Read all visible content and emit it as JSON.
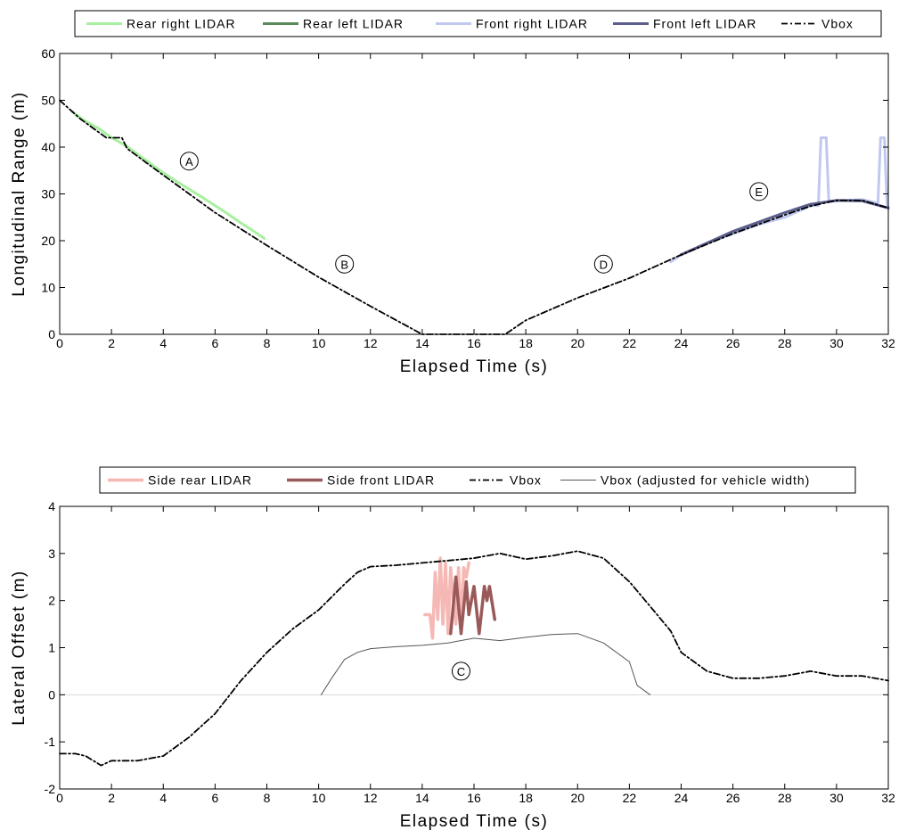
{
  "chart_data": [
    {
      "type": "line",
      "xlabel": "Elapsed Time (s)",
      "ylabel": "Longitudinal Range (m)",
      "xlim": [
        0,
        32
      ],
      "ylim": [
        0,
        60
      ],
      "xticks": [
        "0",
        "2",
        "4",
        "6",
        "8",
        "10",
        "12",
        "14",
        "16",
        "18",
        "20",
        "22",
        "24",
        "26",
        "28",
        "30",
        "32"
      ],
      "yticks": [
        "0",
        "10",
        "20",
        "30",
        "40",
        "50",
        "60"
      ],
      "legend_position": "top",
      "series": [
        {
          "name": "Rear right LIDAR",
          "color": "#a8f0a0",
          "style": "solid",
          "width": 3,
          "x": [
            0.5,
            1,
            1.5,
            2,
            2.5,
            3,
            3.5,
            4,
            4.5,
            5,
            5.5,
            6,
            6.5,
            7,
            7.5,
            7.9
          ],
          "y": [
            47.5,
            45.5,
            44,
            42,
            40.5,
            38.5,
            36.5,
            34.5,
            32.7,
            31,
            29.3,
            27.5,
            25.7,
            23.8,
            22,
            20.5
          ]
        },
        {
          "name": "Rear left LIDAR",
          "color": "#5a8a5a",
          "style": "solid",
          "width": 3,
          "x": [],
          "y": []
        },
        {
          "name": "Front right LIDAR",
          "color": "#c0c8f0",
          "style": "solid",
          "width": 3,
          "x": [
            23.6,
            24,
            25,
            26,
            27,
            28,
            29,
            29.3,
            29.4,
            29.6,
            29.7,
            30,
            31,
            31.6,
            31.7,
            31.85,
            31.95,
            32
          ],
          "y": [
            15.5,
            17,
            19.5,
            21.5,
            23.5,
            25,
            27.5,
            27.5,
            42,
            42,
            28.5,
            28.5,
            28.8,
            28,
            42,
            42,
            28,
            27
          ]
        },
        {
          "name": "Front left LIDAR",
          "color": "#5c5e8c",
          "style": "solid",
          "width": 3,
          "x": [
            24,
            25,
            26,
            27,
            28,
            29,
            30,
            31,
            32
          ],
          "y": [
            17,
            19.5,
            22,
            24,
            26,
            27.8,
            28.6,
            28.5,
            27
          ]
        },
        {
          "name": "Vbox",
          "color": "#000000",
          "style": "dashdot",
          "width": 1.8,
          "x": [
            0,
            0.8,
            1.8,
            2.1,
            2.4,
            2.6,
            4,
            6,
            8,
            10,
            12,
            14,
            14.1,
            17.1,
            17.2,
            18,
            20,
            22,
            24,
            26,
            28,
            29,
            30,
            31,
            32
          ],
          "y": [
            50,
            46,
            42,
            42,
            42,
            39.7,
            34,
            26,
            19,
            12.2,
            6,
            0,
            0,
            0,
            0,
            3,
            7.8,
            12,
            17,
            21.5,
            25.5,
            27.4,
            28.6,
            28.6,
            27
          ]
        }
      ],
      "annotations": [
        {
          "label": "A",
          "x": 5,
          "y": 37
        },
        {
          "label": "B",
          "x": 11,
          "y": 15
        },
        {
          "label": "D",
          "x": 21,
          "y": 15
        },
        {
          "label": "E",
          "x": 27,
          "y": 30.5
        }
      ]
    },
    {
      "type": "line",
      "xlabel": "Elapsed Time (s)",
      "ylabel": "Lateral Offset (m)",
      "xlim": [
        0,
        32
      ],
      "ylim": [
        -2,
        4
      ],
      "xticks": [
        "0",
        "2",
        "4",
        "6",
        "8",
        "10",
        "12",
        "14",
        "16",
        "18",
        "20",
        "22",
        "24",
        "26",
        "28",
        "30",
        "32"
      ],
      "yticks": [
        "-2",
        "-1",
        "0",
        "1",
        "2",
        "3",
        "4"
      ],
      "legend_position": "top",
      "series": [
        {
          "name": "Side rear LIDAR",
          "color": "#f5b8b4",
          "style": "solid",
          "width": 3.5,
          "x": [
            14.1,
            14.3,
            14.4,
            14.5,
            14.6,
            14.7,
            14.8,
            14.9,
            15.0,
            15.1,
            15.2,
            15.3,
            15.4,
            15.5,
            15.6,
            15.7,
            15.8
          ],
          "y": [
            1.7,
            1.7,
            1.2,
            2.6,
            1.6,
            2.9,
            1.5,
            2.8,
            1.3,
            2.7,
            2.0,
            1.5,
            2.7,
            1.4,
            2.7,
            2.5,
            2.8
          ]
        },
        {
          "name": "Side front LIDAR",
          "color": "#9a5a5a",
          "style": "solid",
          "width": 3.5,
          "x": [
            15.1,
            15.3,
            15.5,
            15.7,
            15.8,
            16.0,
            16.2,
            16.4,
            16.5,
            16.6,
            16.8
          ],
          "y": [
            1.3,
            2.5,
            1.3,
            2.4,
            1.7,
            2.3,
            1.3,
            2.3,
            2.0,
            2.3,
            1.6
          ]
        },
        {
          "name": "Vbox",
          "color": "#000000",
          "style": "dashdot",
          "width": 1.8,
          "x": [
            0,
            0.6,
            1,
            1.6,
            2,
            3,
            4,
            5,
            5.6,
            6,
            7,
            7.5,
            8,
            9,
            10,
            11,
            11.5,
            12,
            13,
            14,
            15,
            16,
            17,
            18,
            19,
            20,
            21,
            22,
            23,
            23.6,
            24,
            25,
            26,
            27,
            28,
            29,
            30,
            31,
            32
          ],
          "y": [
            -1.25,
            -1.25,
            -1.3,
            -1.5,
            -1.4,
            -1.4,
            -1.3,
            -0.9,
            -0.6,
            -0.4,
            0.3,
            0.6,
            0.9,
            1.4,
            1.8,
            2.35,
            2.6,
            2.72,
            2.75,
            2.8,
            2.85,
            2.9,
            3.0,
            2.88,
            2.95,
            3.05,
            2.9,
            2.4,
            1.75,
            1.35,
            0.9,
            0.5,
            0.35,
            0.35,
            0.4,
            0.5,
            0.4,
            0.4,
            0.3
          ]
        },
        {
          "name": "Vbox (adjusted for vehicle width)",
          "color": "#555555",
          "style": "solid",
          "width": 1,
          "x": [
            10.1,
            10.5,
            11,
            11.5,
            12,
            13,
            14,
            15,
            16,
            17,
            18,
            19,
            20,
            21,
            22,
            22.3,
            22.8
          ],
          "y": [
            0,
            0.35,
            0.75,
            0.9,
            0.98,
            1.02,
            1.05,
            1.1,
            1.2,
            1.15,
            1.22,
            1.28,
            1.3,
            1.1,
            0.7,
            0.2,
            0
          ]
        }
      ],
      "annotations": [
        {
          "label": "C",
          "x": 15.5,
          "y": 0.5
        }
      ]
    }
  ]
}
